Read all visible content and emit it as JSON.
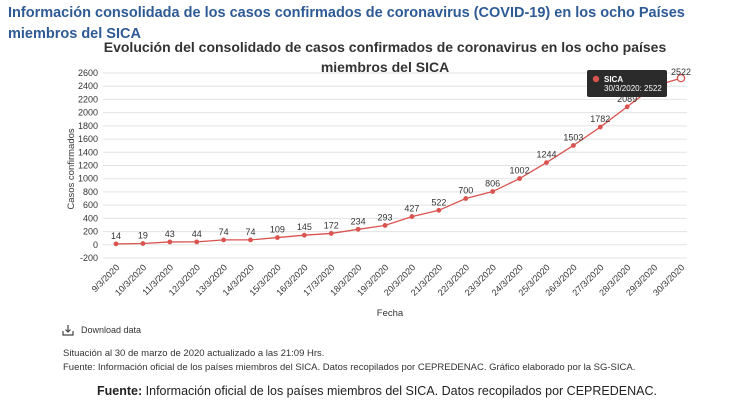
{
  "heading": "Información consolidada de los casos confirmados de coronavirus (COVID-19) en los ocho Países miembros del SICA",
  "download_label": "Download data",
  "status_text": "Situación al 30 de marzo de 2020 actualizado a las 21:09 Hrs.",
  "source_text": "Fuente: Información oficial de los países miembros del SICA. Datos recopilados por CEPREDENAC. Gráfico elaborado por la SG-SICA.",
  "footer": {
    "label": "Fuente:",
    "text": " Información oficial de los países miembros del SICA. Datos recopilados por CEPREDENAC."
  },
  "tooltip": {
    "series": "SICA",
    "text": "30/3/2020: 2522"
  },
  "colors": {
    "heading": "#2e5a95",
    "line": "#d9534f",
    "tooltip_bg": "#2b2b2b"
  },
  "chart_data": {
    "type": "line",
    "title": "Evolución del consolidado de casos confirmados de coronavirus en los ocho países miembros del SICA",
    "xlabel": "Fecha",
    "ylabel": "Casos confirmados",
    "ylim": [
      -200,
      2600
    ],
    "yticks": [
      -200,
      0,
      200,
      400,
      600,
      800,
      1000,
      1200,
      1400,
      1600,
      1800,
      2000,
      2200,
      2400,
      2600
    ],
    "grid": true,
    "x": [
      "9/3/2020",
      "10/3/2020",
      "11/3/2020",
      "12/3/2020",
      "13/3/2020",
      "14/3/2020",
      "15/3/2020",
      "16/3/2020",
      "17/3/2020",
      "18/3/2020",
      "19/3/2020",
      "20/3/2020",
      "21/3/2020",
      "22/3/2020",
      "23/3/2020",
      "24/3/2020",
      "25/3/2020",
      "26/3/2020",
      "27/3/2020",
      "28/3/2020",
      "29/3/2020",
      "30/3/2020"
    ],
    "series": [
      {
        "name": "SICA",
        "values": [
          14,
          19,
          43,
          44,
          74,
          74,
          109,
          145,
          172,
          234,
          293,
          427,
          522,
          700,
          806,
          1002,
          1244,
          1503,
          1782,
          2089,
          2400,
          2522
        ],
        "labels": [
          "14",
          "19",
          "43",
          "44",
          "74",
          "74",
          "109",
          "145",
          "172",
          "234",
          "293",
          "427",
          "522",
          "700",
          "806",
          "1002",
          "1244",
          "1503",
          "1782",
          "2089",
          "",
          "2522"
        ]
      }
    ]
  }
}
